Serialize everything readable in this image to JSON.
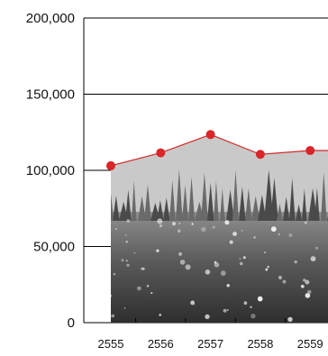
{
  "chart_data": {
    "type": "area",
    "title": "",
    "xlabel": "",
    "ylabel": "",
    "categories": [
      "2555",
      "2556",
      "2557",
      "2558",
      "2559"
    ],
    "series": [
      {
        "values": [
          103000,
          111500,
          123500,
          110500,
          113000
        ]
      }
    ],
    "ylim": [
      0,
      200000
    ],
    "yticks": [
      "0",
      "50,000",
      "100,000",
      "150,000",
      "200,000"
    ],
    "grid": "horizontal",
    "legend": "none",
    "colors": {
      "line": "#d42a2a",
      "marker": "#d8262b",
      "area_fill": "#c9c9c9",
      "grid": "#000000",
      "photo_dark": "#3c3c3c",
      "photo_light": "#9a9a9a"
    }
  }
}
